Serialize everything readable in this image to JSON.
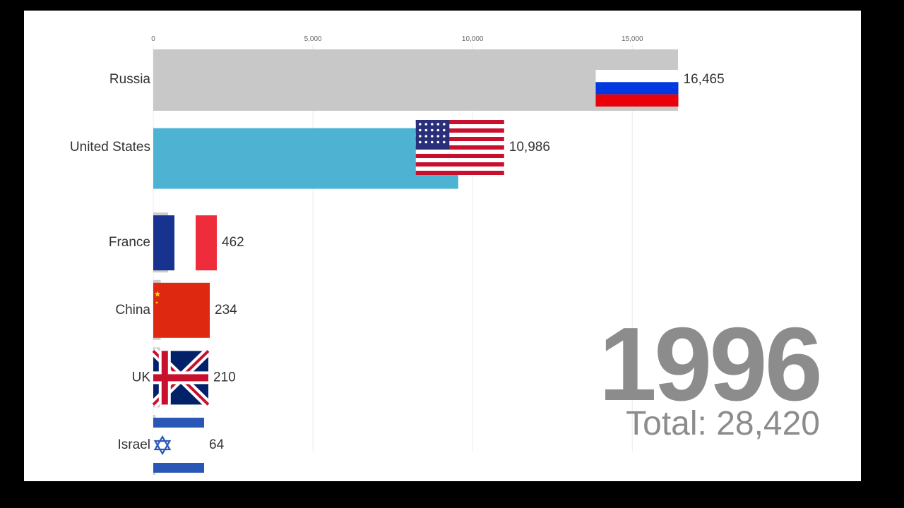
{
  "chart_data": {
    "type": "bar",
    "orientation": "horizontal",
    "title": "",
    "xlabel": "",
    "ylabel": "",
    "xlim": [
      0,
      16800
    ],
    "ticks": [
      0,
      5000,
      10000,
      15000
    ],
    "tick_labels": [
      "0",
      "5,000",
      "10,000",
      "15,000"
    ],
    "grid": true,
    "categories": [
      "Russia",
      "United States",
      "France",
      "China",
      "UK",
      "Israel"
    ],
    "values": [
      16465,
      10986,
      462,
      234,
      210,
      64
    ],
    "value_labels": [
      "16,465",
      "10,986",
      "462",
      "234",
      "210",
      "64"
    ],
    "bar_colors": [
      "#c8c8c8",
      "#4eb3d3",
      "#cccccc",
      "#cccccc",
      "#cccccc",
      "#cccccc"
    ],
    "flags": [
      "russia-flag",
      "usa-flag",
      "france-flag",
      "china-flag",
      "uk-flag",
      "israel-flag"
    ]
  },
  "year": "1996",
  "total_label": "Total: 28,420"
}
